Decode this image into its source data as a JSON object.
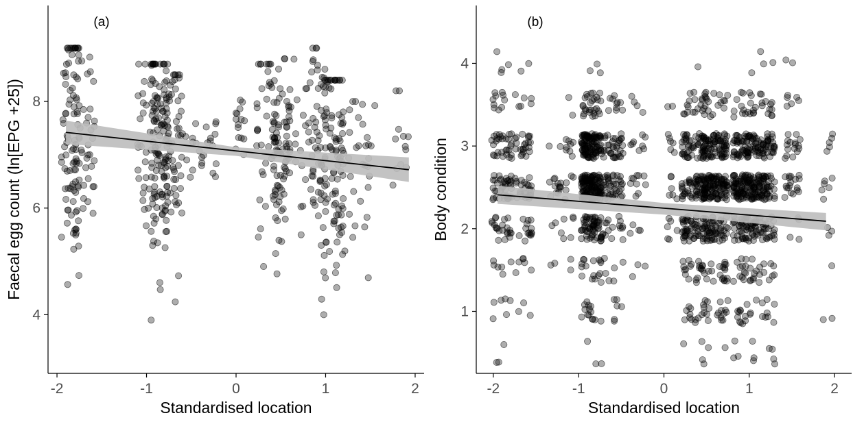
{
  "chart_data": [
    {
      "type": "scatter",
      "panel_label": "(a)",
      "xlabel": "Standardised location",
      "ylabel": "Faecal egg count (ln[EPG +25])",
      "xlim": [
        -2.1,
        2.1
      ],
      "ylim": [
        2.9,
        9.8
      ],
      "xticks": [
        -2,
        -1,
        0,
        1,
        2
      ],
      "xtick_labels": [
        "-2",
        "-1",
        "0",
        "1",
        "2"
      ],
      "yticks": [
        4,
        6,
        8
      ],
      "ytick_labels": [
        "4",
        "6",
        "8"
      ],
      "grid": false,
      "jitter_columns": [
        {
          "x": -1.85,
          "width": 0.1,
          "n": 80,
          "ymin": 3.9,
          "ymax": 9.0,
          "center": 7.3
        },
        {
          "x": -1.7,
          "width": 0.12,
          "n": 50,
          "ymin": 3.9,
          "ymax": 9.0,
          "center": 7.4
        },
        {
          "x": -1.0,
          "width": 0.1,
          "n": 40,
          "ymin": 4.6,
          "ymax": 8.7,
          "center": 7.4
        },
        {
          "x": -0.85,
          "width": 0.1,
          "n": 110,
          "ymin": 3.9,
          "ymax": 8.7,
          "center": 7.2
        },
        {
          "x": -0.7,
          "width": 0.1,
          "n": 60,
          "ymin": 3.9,
          "ymax": 8.5,
          "center": 7.2
        },
        {
          "x": -0.4,
          "width": 0.2,
          "n": 25,
          "ymin": 6.0,
          "ymax": 7.8,
          "center": 7.0
        },
        {
          "x": 0.05,
          "width": 0.06,
          "n": 15,
          "ymin": 6.5,
          "ymax": 8.3,
          "center": 7.5
        },
        {
          "x": 0.35,
          "width": 0.12,
          "n": 45,
          "ymin": 4.6,
          "ymax": 8.7,
          "center": 7.1
        },
        {
          "x": 0.5,
          "width": 0.1,
          "n": 70,
          "ymin": 4.6,
          "ymax": 8.8,
          "center": 7.1
        },
        {
          "x": 0.7,
          "width": 0.15,
          "n": 30,
          "ymin": 5.5,
          "ymax": 8.9,
          "center": 7.2
        },
        {
          "x": 0.92,
          "width": 0.08,
          "n": 60,
          "ymin": 3.9,
          "ymax": 9.0,
          "center": 7.0
        },
        {
          "x": 1.1,
          "width": 0.12,
          "n": 95,
          "ymin": 3.2,
          "ymax": 8.4,
          "center": 6.9
        },
        {
          "x": 1.4,
          "width": 0.15,
          "n": 30,
          "ymin": 3.9,
          "ymax": 8.0,
          "center": 6.9
        },
        {
          "x": 1.85,
          "width": 0.1,
          "n": 12,
          "ymin": 5.5,
          "ymax": 8.2,
          "center": 7.0
        }
      ],
      "fit": {
        "x": [
          -1.9,
          1.93
        ],
        "y": [
          7.42,
          6.72
        ]
      },
      "ci": {
        "x": [
          -1.9,
          0.0,
          1.93
        ],
        "upper": [
          7.64,
          7.14,
          6.95
        ],
        "lower": [
          7.2,
          6.98,
          6.49
        ]
      }
    },
    {
      "type": "scatter",
      "panel_label": "(b)",
      "xlabel": "Standardised location",
      "ylabel": "Body condition",
      "xlim": [
        -2.2,
        2.2
      ],
      "ylim": [
        0.25,
        4.7
      ],
      "xticks": [
        -2,
        -1,
        0,
        1,
        2
      ],
      "xtick_labels": [
        "-2",
        "-1",
        "0",
        "1",
        "2"
      ],
      "yticks": [
        1,
        2,
        3,
        4
      ],
      "ytick_labels": [
        "1",
        "2",
        "3",
        "4"
      ],
      "grid": false,
      "levels": [
        0.5,
        1.0,
        1.5,
        2.0,
        2.5,
        3.0,
        3.5,
        4.0
      ],
      "jitter_columns": [
        {
          "x": -1.9,
          "width": 0.12,
          "counts": [
            3,
            6,
            6,
            22,
            40,
            30,
            10,
            4
          ]
        },
        {
          "x": -1.65,
          "width": 0.1,
          "counts": [
            0,
            3,
            6,
            14,
            28,
            22,
            6,
            2
          ]
        },
        {
          "x": -1.2,
          "width": 0.15,
          "counts": [
            0,
            0,
            4,
            8,
            18,
            10,
            2,
            0
          ]
        },
        {
          "x": -0.85,
          "width": 0.12,
          "counts": [
            3,
            14,
            16,
            60,
            140,
            110,
            28,
            3
          ]
        },
        {
          "x": -0.6,
          "width": 0.12,
          "counts": [
            0,
            6,
            6,
            16,
            40,
            35,
            10,
            0
          ]
        },
        {
          "x": -0.3,
          "width": 0.1,
          "counts": [
            0,
            0,
            3,
            4,
            10,
            8,
            4,
            0
          ]
        },
        {
          "x": 0.1,
          "width": 0.06,
          "counts": [
            0,
            0,
            0,
            6,
            6,
            6,
            2,
            0
          ]
        },
        {
          "x": 0.35,
          "width": 0.14,
          "counts": [
            3,
            14,
            18,
            50,
            60,
            50,
            16,
            1
          ]
        },
        {
          "x": 0.6,
          "width": 0.15,
          "counts": [
            3,
            16,
            22,
            60,
            110,
            80,
            20,
            0
          ]
        },
        {
          "x": 0.95,
          "width": 0.14,
          "counts": [
            6,
            14,
            20,
            60,
            110,
            70,
            18,
            1
          ]
        },
        {
          "x": 1.2,
          "width": 0.1,
          "counts": [
            4,
            8,
            10,
            30,
            60,
            45,
            12,
            3
          ]
        },
        {
          "x": 1.5,
          "width": 0.1,
          "counts": [
            0,
            0,
            0,
            4,
            18,
            16,
            6,
            2
          ]
        },
        {
          "x": 1.9,
          "width": 0.08,
          "counts": [
            0,
            2,
            1,
            3,
            6,
            5,
            0,
            0
          ]
        }
      ],
      "fit": {
        "x": [
          -1.95,
          1.9
        ],
        "y": [
          2.41,
          2.09
        ]
      },
      "ci": {
        "x": [
          -1.95,
          0.0,
          1.9
        ],
        "upper": [
          2.52,
          2.31,
          2.19
        ],
        "lower": [
          2.3,
          2.17,
          1.98
        ]
      }
    }
  ]
}
